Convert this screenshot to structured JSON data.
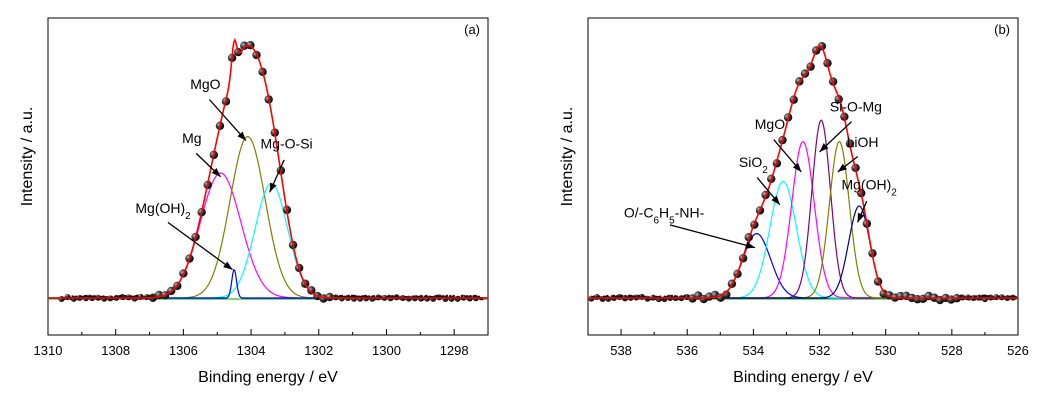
{
  "chart_data": [
    {
      "type": "line",
      "panel_label": "(a)",
      "xlabel": "Binding energy / eV",
      "ylabel": "Intensity / a.u.",
      "xlim": [
        1310,
        1297
      ],
      "x_reversed": true,
      "y_ticks_shown": false,
      "xticks": [
        1310,
        1308,
        1306,
        1304,
        1302,
        1300,
        1298
      ],
      "xtick_labels": [
        "1310",
        "1308",
        "1306",
        "1304",
        "1302",
        "1300",
        "1298"
      ],
      "ylim": [
        0,
        100
      ],
      "baseline": 0,
      "experimental": {
        "marker": "dark-sphere",
        "color": "#1a1a1a",
        "envelope_color": "#ff0000",
        "x_start": 1309.6,
        "x_end": 1297.2,
        "marker_step": 0.18,
        "noise_start": 1306.9,
        "noise_end": 1301.6
      },
      "peaks": [
        {
          "label": "Mg",
          "center": 1304.9,
          "height": 48,
          "sigma": 0.6,
          "color": "#ff00ff"
        },
        {
          "label": "MgO",
          "center": 1304.1,
          "height": 62,
          "sigma": 0.52,
          "color": "#808000"
        },
        {
          "label": "Mg-O-Si",
          "center": 1303.4,
          "height": 44,
          "sigma": 0.48,
          "color": "#00ffff"
        },
        {
          "label": "Mg(OH)",
          "label_sub": "2",
          "center": 1304.5,
          "height": 11,
          "sigma": 0.07,
          "color": "#0000ff"
        }
      ],
      "annotations": [
        {
          "text": "MgO",
          "sub": "",
          "tx": 1305.35,
          "ty": 81,
          "ax": 1304.15,
          "ay": 61
        },
        {
          "text": "Mg",
          "sub": "",
          "tx": 1305.75,
          "ty": 60,
          "ax": 1304.9,
          "ay": 47
        },
        {
          "text": "Mg-O-Si",
          "sub": "",
          "tx": 1302.95,
          "ty": 58,
          "ax": 1303.45,
          "ay": 41
        },
        {
          "text": "Mg(OH)",
          "sub": "2",
          "tx": 1306.6,
          "ty": 33,
          "ax": 1304.55,
          "ay": 11
        }
      ]
    },
    {
      "type": "line",
      "panel_label": "(b)",
      "xlabel": "Binding energy / eV",
      "ylabel": "Intensity / a.u.",
      "xlim": [
        539,
        526
      ],
      "x_reversed": true,
      "y_ticks_shown": false,
      "xticks": [
        538,
        536,
        534,
        532,
        530,
        528,
        526
      ],
      "xtick_labels": [
        "538",
        "536",
        "534",
        "532",
        "530",
        "528",
        "526"
      ],
      "ylim": [
        0,
        100
      ],
      "baseline": 0,
      "experimental": {
        "marker": "dark-sphere",
        "color": "#1a1a1a",
        "envelope_color": "#ff0000",
        "x_start": 538.9,
        "x_end": 526.1,
        "marker_step": 0.17,
        "noise_start": 536.0,
        "noise_end": 527.8
      },
      "peaks": [
        {
          "label": "O/-C",
          "label_sub": "6",
          "label_mid": "H",
          "label_sub2": "5",
          "label_tail": "-NH-",
          "center": 533.9,
          "height": 21,
          "sigma": 0.42,
          "color": "#0000ff"
        },
        {
          "label": "SiO",
          "label_sub": "2",
          "center": 533.1,
          "height": 38,
          "sigma": 0.4,
          "color": "#00ffff"
        },
        {
          "label": "MgO",
          "center": 532.5,
          "height": 51,
          "sigma": 0.34,
          "color": "#ff00ff"
        },
        {
          "label": "Si-O-Mg",
          "center": 531.95,
          "height": 58,
          "sigma": 0.28,
          "color": "#800080"
        },
        {
          "label": "LiOH",
          "center": 531.4,
          "height": 51,
          "sigma": 0.3,
          "color": "#808000"
        },
        {
          "label": "Mg(OH)",
          "label_sub": "2",
          "center": 530.8,
          "height": 30,
          "sigma": 0.32,
          "color": "#000080"
        }
      ],
      "annotations": [
        {
          "text": "MgO",
          "sub": "",
          "tx": 533.5,
          "ty": 67,
          "ax": 532.55,
          "ay": 50
        },
        {
          "text": "Si-O-Mg",
          "sub": "",
          "tx": 530.9,
          "ty": 74,
          "ax": 532.0,
          "ay": 58
        },
        {
          "text": "LiOH",
          "sub": "",
          "tx": 530.7,
          "ty": 60,
          "ax": 531.45,
          "ay": 50
        },
        {
          "text": "SiO",
          "sub": "2",
          "tx": 534.0,
          "ty": 52,
          "ax": 533.2,
          "ay": 37
        },
        {
          "text": "Mg(OH)",
          "sub": "2",
          "tx": 530.5,
          "ty": 43,
          "ax": 530.85,
          "ay": 30
        },
        {
          "text": "O/-C",
          "sub": "6",
          "mid": "H",
          "sub2": "5",
          "tail": "-NH-",
          "tx": 536.7,
          "ty": 32,
          "ax": 533.95,
          "ay": 20
        }
      ]
    }
  ]
}
